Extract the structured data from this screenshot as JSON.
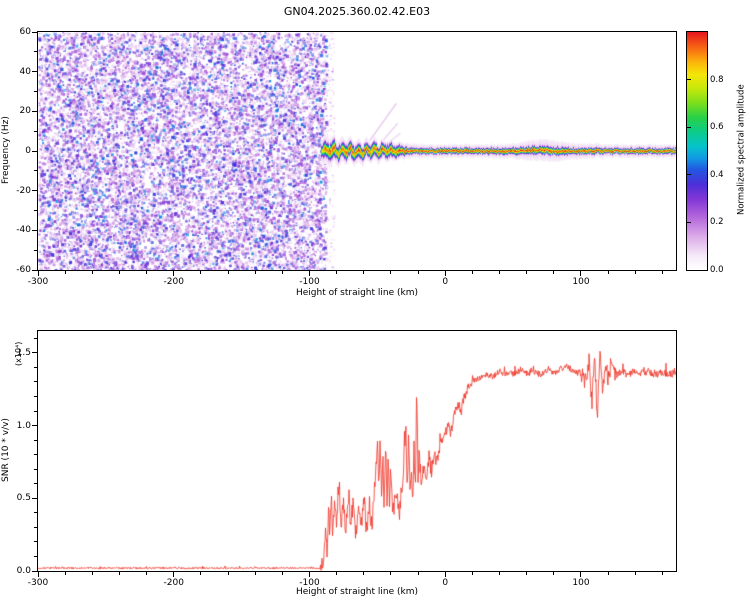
{
  "title": "GN04.2025.360.02.42.E03",
  "colors": {
    "background": "#ffffff",
    "axis": "#000000"
  },
  "colormap": {
    "stops": [
      [
        0,
        "#ffffff"
      ],
      [
        0.06,
        "#f6eaf8"
      ],
      [
        0.14,
        "#dcace9"
      ],
      [
        0.22,
        "#b468db"
      ],
      [
        0.3,
        "#8136d6"
      ],
      [
        0.36,
        "#4b2fd8"
      ],
      [
        0.42,
        "#2456e0"
      ],
      [
        0.47,
        "#119ae4"
      ],
      [
        0.52,
        "#06c3c9"
      ],
      [
        0.58,
        "#0ccb8a"
      ],
      [
        0.64,
        "#27d048"
      ],
      [
        0.7,
        "#7ade1c"
      ],
      [
        0.76,
        "#c3e80b"
      ],
      [
        0.82,
        "#f4e607"
      ],
      [
        0.87,
        "#fbb80b"
      ],
      [
        0.92,
        "#f97812"
      ],
      [
        1,
        "#e8151d"
      ]
    ]
  },
  "chart_data": [
    {
      "type": "heatmap",
      "name": "spectrogram",
      "xlabel": "Height of straight line (km)",
      "ylabel": "Frequency (Hz)",
      "xlim": [
        -300,
        170
      ],
      "ylim": [
        -60,
        60
      ],
      "xticks": [
        -300,
        -200,
        -100,
        0,
        100
      ],
      "xtick_labels": [
        "-300",
        "-200",
        "-100",
        "0",
        "100"
      ],
      "yticks": [
        60,
        40,
        20,
        0,
        -20,
        -40,
        -60
      ],
      "ytick_labels": [
        "60",
        "40",
        "20",
        "0",
        "-20",
        "-40",
        "-60"
      ],
      "x_minor_step": 20,
      "y_minor_step": 10,
      "colorbar": {
        "label": "Normalized spectral amplitude",
        "ticks": [
          "0.0",
          "0.2",
          "0.4",
          "0.6",
          "0.8"
        ],
        "tick_values": [
          0,
          0.2,
          0.4,
          0.6,
          0.8
        ],
        "range": [
          0,
          1
        ]
      },
      "noise_region": {
        "x": [
          -300,
          -88
        ],
        "max_value": 0.4,
        "dot_count": 15000
      },
      "signal_band": {
        "x_start": -91,
        "points": [
          [
            -91,
            0,
            2.2,
            9,
            0.8
          ],
          [
            -88,
            1,
            2.8,
            11,
            1.0
          ],
          [
            -85,
            -1.5,
            2.6,
            10,
            0.95
          ],
          [
            -82,
            2,
            2.6,
            9,
            1.0
          ],
          [
            -79,
            -2,
            2.5,
            9,
            0.92
          ],
          [
            -76,
            1.5,
            2.6,
            9,
            1.0
          ],
          [
            -73,
            -1.5,
            2.4,
            8,
            0.95
          ],
          [
            -70,
            2,
            2.5,
            8,
            1.0
          ],
          [
            -67,
            -2,
            2.4,
            8,
            0.93
          ],
          [
            -64,
            1,
            2.4,
            8,
            1.0
          ],
          [
            -61,
            -2.5,
            2.4,
            8,
            0.95
          ],
          [
            -58,
            1.5,
            2.3,
            8,
            1.0
          ],
          [
            -55,
            -1,
            2.3,
            7,
            0.92
          ],
          [
            -52,
            2,
            2.4,
            8,
            1.0
          ],
          [
            -49,
            -1.5,
            2.3,
            7,
            0.95
          ],
          [
            -46,
            1.5,
            2.3,
            7,
            1.0
          ],
          [
            -43,
            -1,
            2.2,
            7,
            0.95
          ],
          [
            -40,
            1,
            2.1,
            7,
            1.0
          ],
          [
            -37,
            -0.8,
            2.0,
            6,
            0.95
          ],
          [
            -34,
            0.5,
            1.8,
            6,
            1.0
          ],
          [
            -30,
            -0.3,
            1.4,
            5.5,
            1.0
          ],
          [
            -25,
            0.2,
            1.2,
            5,
            1.0
          ],
          [
            -15,
            0,
            1.0,
            4.5,
            1.0
          ],
          [
            0,
            0,
            1.0,
            4.5,
            1.0
          ],
          [
            30,
            0,
            1.0,
            4.5,
            1.0
          ],
          [
            50,
            0,
            1.1,
            5,
            1.0
          ],
          [
            60,
            0.3,
            1.3,
            6.5,
            1.0
          ],
          [
            72,
            0.5,
            1.5,
            7.5,
            1.0
          ],
          [
            82,
            0,
            1.4,
            7,
            1.0
          ],
          [
            92,
            0,
            1.1,
            5.5,
            1.0
          ],
          [
            120,
            0,
            1.0,
            4.5,
            1.0
          ],
          [
            170,
            0,
            1.0,
            4.5,
            1.0
          ]
        ],
        "wisps": [
          {
            "x1": -58,
            "y1": 3,
            "x2": -36,
            "y2": 24,
            "value": 0.13
          },
          {
            "x1": -50,
            "y1": 2,
            "x2": -35,
            "y2": 14,
            "value": 0.11
          },
          {
            "x1": -44,
            "y1": 3,
            "x2": -33,
            "y2": 9,
            "value": 0.1
          }
        ]
      }
    },
    {
      "type": "line",
      "name": "snr",
      "xlabel": "Height of straight line (km)",
      "ylabel": "SNR (10 * v/v)",
      "ylabel_units": "(x10⁴)",
      "xlim": [
        -300,
        170
      ],
      "ylim": [
        0,
        1.65
      ],
      "xticks": [
        -300,
        -200,
        -100,
        0,
        100
      ],
      "xtick_labels": [
        "-300",
        "-200",
        "-100",
        "0",
        "100"
      ],
      "ytick_values": [
        0,
        0.5,
        1.0,
        1.5
      ],
      "ytick_labels": [
        "0.0",
        "0.5",
        "1.0",
        "1.5"
      ],
      "x_minor_step": 20,
      "y_minor_step": 0.1,
      "series": [
        {
          "name": "SNR",
          "color": "#ee3124",
          "points": [
            [
              -300,
              0.02
            ],
            [
              -150,
              0.02
            ],
            [
              -100,
              0.02
            ],
            [
              -92,
              0.02
            ],
            [
              -90,
              0.04
            ],
            [
              -88,
              0.3
            ],
            [
              -87,
              0.12
            ],
            [
              -86,
              0.45
            ],
            [
              -85,
              0.2
            ],
            [
              -84,
              0.55
            ],
            [
              -83,
              0.25
            ],
            [
              -81,
              0.5
            ],
            [
              -80,
              0.3
            ],
            [
              -78,
              0.6
            ],
            [
              -77,
              0.3
            ],
            [
              -75,
              0.45
            ],
            [
              -73,
              0.25
            ],
            [
              -71,
              0.55
            ],
            [
              -70,
              0.3
            ],
            [
              -68,
              0.45
            ],
            [
              -66,
              0.25
            ],
            [
              -64,
              0.4
            ],
            [
              -62,
              0.3
            ],
            [
              -60,
              0.5
            ],
            [
              -58,
              0.3
            ],
            [
              -56,
              0.45
            ],
            [
              -54,
              0.3
            ],
            [
              -52,
              0.6
            ],
            [
              -50,
              0.9
            ],
            [
              -49,
              0.5
            ],
            [
              -48,
              0.95
            ],
            [
              -47,
              0.55
            ],
            [
              -46,
              0.8
            ],
            [
              -45,
              0.45
            ],
            [
              -44,
              0.9
            ],
            [
              -43,
              0.5
            ],
            [
              -42,
              0.75
            ],
            [
              -41,
              0.45
            ],
            [
              -40,
              0.6
            ],
            [
              -38,
              0.4
            ],
            [
              -36,
              0.55
            ],
            [
              -34,
              0.35
            ],
            [
              -32,
              0.6
            ],
            [
              -30,
              0.8
            ],
            [
              -29,
              1.0
            ],
            [
              -28,
              0.6
            ],
            [
              -27,
              0.9
            ],
            [
              -26,
              0.5
            ],
            [
              -25,
              0.75
            ],
            [
              -24,
              0.45
            ],
            [
              -23,
              0.85
            ],
            [
              -22,
              0.55
            ],
            [
              -21,
              1.28
            ],
            [
              -20,
              0.6
            ],
            [
              -19,
              0.8
            ],
            [
              -18,
              0.55
            ],
            [
              -16,
              0.7
            ],
            [
              -14,
              0.6
            ],
            [
              -12,
              0.75
            ],
            [
              -10,
              0.7
            ],
            [
              -8,
              0.8
            ],
            [
              -6,
              0.75
            ],
            [
              -4,
              0.85
            ],
            [
              -2,
              0.9
            ],
            [
              0,
              0.95
            ],
            [
              2,
              1.0
            ],
            [
              4,
              0.95
            ],
            [
              6,
              1.05
            ],
            [
              8,
              1.1
            ],
            [
              10,
              1.15
            ],
            [
              12,
              1.1
            ],
            [
              14,
              1.2
            ],
            [
              16,
              1.25
            ],
            [
              18,
              1.28
            ],
            [
              20,
              1.3
            ],
            [
              25,
              1.33
            ],
            [
              30,
              1.35
            ],
            [
              35,
              1.34
            ],
            [
              40,
              1.37
            ],
            [
              45,
              1.35
            ],
            [
              50,
              1.36
            ],
            [
              55,
              1.38
            ],
            [
              60,
              1.36
            ],
            [
              65,
              1.37
            ],
            [
              70,
              1.35
            ],
            [
              75,
              1.38
            ],
            [
              80,
              1.36
            ],
            [
              85,
              1.39
            ],
            [
              90,
              1.41
            ],
            [
              95,
              1.37
            ],
            [
              100,
              1.36
            ],
            [
              103,
              1.3
            ],
            [
              106,
              1.45
            ],
            [
              108,
              1.15
            ],
            [
              110,
              1.5
            ],
            [
              112,
              1.05
            ],
            [
              114,
              1.55
            ],
            [
              116,
              1.2
            ],
            [
              118,
              1.45
            ],
            [
              120,
              1.3
            ],
            [
              122,
              1.42
            ],
            [
              125,
              1.34
            ],
            [
              130,
              1.37
            ],
            [
              135,
              1.35
            ],
            [
              140,
              1.38
            ],
            [
              145,
              1.36
            ],
            [
              150,
              1.37
            ],
            [
              155,
              1.35
            ],
            [
              160,
              1.37
            ],
            [
              165,
              1.35
            ],
            [
              168,
              1.36
            ]
          ]
        }
      ],
      "noise_amplitude": [
        [
          -300,
          -92,
          0.006
        ],
        [
          -92,
          -60,
          0.06
        ],
        [
          -60,
          -30,
          0.08
        ],
        [
          -30,
          -10,
          0.07
        ],
        [
          -10,
          20,
          0.04
        ],
        [
          20,
          100,
          0.022
        ],
        [
          100,
          126,
          0.06
        ],
        [
          126,
          170,
          0.025
        ]
      ]
    }
  ]
}
